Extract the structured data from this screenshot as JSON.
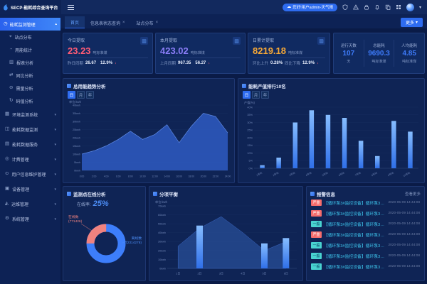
{
  "topbar": {
    "logo": "SECP-能耗综合查询平台",
    "user_pill": "您好!用户admin-天气晴",
    "icons": [
      "shield-icon",
      "warning-icon",
      "lock-icon",
      "bell-icon",
      "copy-icon",
      "grid-icon"
    ]
  },
  "tabs": {
    "items": [
      {
        "label": "首页"
      },
      {
        "label": "信息表状态查询"
      },
      {
        "label": "站点分布"
      }
    ],
    "more_label": "更多"
  },
  "sidebar": {
    "active_group": {
      "label": "能耗监测管理",
      "icon": "clock-icon"
    },
    "sub_items": [
      {
        "label": "站点分布",
        "icon": "pin-icon"
      },
      {
        "label": "用能统计",
        "icon": "pie-icon"
      },
      {
        "label": "报表分析",
        "icon": "report-icon"
      },
      {
        "label": "同比分析",
        "icon": "compare-icon"
      },
      {
        "label": "需量分析",
        "icon": "demand-icon"
      },
      {
        "label": "码值分析",
        "icon": "code-icon"
      }
    ],
    "groups": [
      {
        "label": "环境监测系统",
        "icon": "env-icon"
      },
      {
        "label": "能耗数据监测",
        "icon": "data-monitor-icon"
      },
      {
        "label": "能耗数据服务",
        "icon": "data-service-icon"
      },
      {
        "label": "计费管理",
        "icon": "billing-icon"
      },
      {
        "label": "用户信息维护管理",
        "icon": "user-maint-icon"
      },
      {
        "label": "设备管理",
        "icon": "device-icon"
      },
      {
        "label": "运维管理",
        "icon": "ops-icon"
      },
      {
        "label": "系统管理",
        "icon": "system-icon"
      }
    ]
  },
  "stats": {
    "cards": [
      {
        "title": "今日提取",
        "value": "23.23",
        "unit": "吨标准煤",
        "f1_label": "昨日同期",
        "f1_value": "26.67",
        "f2_label": "",
        "f2_value": "12.9%",
        "arrow": "↓"
      },
      {
        "title": "本月提取",
        "value": "423.02",
        "unit": "吨标准煤",
        "f1_label": "上月同期",
        "f1_value": "967.35",
        "f2_label": "",
        "f2_value": "56.27",
        "arrow": "↓"
      },
      {
        "title": "日累计提取",
        "value": "8219.18",
        "unit": "吨标准煤",
        "f1_label": "环比上升",
        "f1_value": "0.28%",
        "f2_label": "同比下降",
        "f2_value": "12.9%",
        "arrow": "↓"
      }
    ],
    "summary": [
      {
        "label": "运行天数",
        "value": "107",
        "unit": "天"
      },
      {
        "label": "总能耗",
        "value": "9690.3",
        "unit": "吨标准煤"
      },
      {
        "label": "人均能耗",
        "value": "4.85",
        "unit": "吨标准煤"
      }
    ]
  },
  "panels": {
    "trend": {
      "title": "总用能趋势分析",
      "tabs": [
        "日",
        "月",
        "年"
      ],
      "active_tab": 0
    },
    "rank": {
      "title": "能耗产值排行10名",
      "tabs": [
        "日",
        "月",
        "年"
      ],
      "active_tab": 0
    },
    "online": {
      "title": "监测点在线分析",
      "rate_label": "在线率:",
      "rate": "25%",
      "online_label": "在线数",
      "online_value": "(771426)",
      "offline_label": "离线数",
      "offline_value": "(2314278)"
    },
    "balance": {
      "title": "分项平衡"
    },
    "alarm": {
      "title": "报警信息",
      "more": "查看更多"
    }
  },
  "chart_data": [
    {
      "id": "trend",
      "type": "area",
      "title": "总用能趋势分析",
      "x": [
        "0:00",
        "2:00",
        "4:00",
        "6:00",
        "8:00",
        "10:00",
        "12:00",
        "14:00",
        "16:00",
        "18:00",
        "20:00",
        "22:00",
        "24:00"
      ],
      "values": [
        10,
        12,
        15,
        19,
        24,
        19,
        22,
        28,
        17,
        27,
        35,
        33,
        23
      ],
      "ylabel": "单位:kwh",
      "tick_unit": "kwh",
      "ylim": [
        0,
        40
      ],
      "grid": true,
      "color": "#2b57ba"
    },
    {
      "id": "rank",
      "type": "bar",
      "title": "能耗产值排行10名",
      "categories": [
        "1号站",
        "2号站",
        "3号站",
        "4号站",
        "5号站",
        "6号站",
        "7号站",
        "8号站",
        "9号站",
        "10号站"
      ],
      "values": [
        2,
        7,
        30,
        38,
        35,
        33,
        18,
        8,
        31,
        24
      ],
      "ylabel": "产值(%)",
      "tick_unit": "%",
      "ylim": [
        0,
        40
      ],
      "grid": true,
      "color": "#3b7ef5"
    },
    {
      "id": "online",
      "type": "pie",
      "title": "监测点在线分析",
      "slices": [
        {
          "label": "在线数",
          "value": 25,
          "color": "#f0827f"
        },
        {
          "label": "离线数",
          "value": 75,
          "color": "#3d7efb"
        }
      ],
      "center_text": "在线率 25%"
    },
    {
      "id": "balance",
      "type": "area+bar",
      "title": "分项平衡",
      "categories": [
        "1日",
        "2日",
        "3日",
        "4日",
        "5日",
        "6日"
      ],
      "series": [
        {
          "name": "趋势",
          "type": "area",
          "values": [
            25,
            45,
            58,
            40,
            20,
            30
          ]
        },
        {
          "name": "用量",
          "type": "bar",
          "values": [
            0,
            48,
            0,
            0,
            28,
            34
          ]
        }
      ],
      "ylabel": "单位:kwh",
      "tick_unit": "kwh",
      "ylim": [
        0,
        70
      ],
      "grid": true,
      "color": "#3f8dff"
    }
  ],
  "alarms": {
    "rows": [
      {
        "level": "严重",
        "type": "danger",
        "text": "【循环泵3#监控设备】循环泵3#流量超限",
        "time": "2020-05-09 14:44:08"
      },
      {
        "level": "严重",
        "type": "danger",
        "text": "【循环泵3#监控设备】循环泵3#流量超限",
        "time": "2020-05-09 14:44:08"
      },
      {
        "level": "一般",
        "type": "normal",
        "text": "【循环泵3#监控设备】循环泵3#流量超限",
        "time": "2020-05-09 14:44:08"
      },
      {
        "level": "严重",
        "type": "danger",
        "text": "【循环泵3#监控设备】循环泵3#流量超限",
        "time": "2020-05-09 14:44:08"
      },
      {
        "level": "一般",
        "type": "normal",
        "text": "【循环泵3#监控设备】循环泵3#流量超限",
        "time": "2020-05-09 14:44:08"
      },
      {
        "level": "一般",
        "type": "normal",
        "text": "【循环泵3#监控设备】循环泵3#流量超限",
        "time": "2020-05-09 14:44:08"
      },
      {
        "level": "一般",
        "type": "normal",
        "text": "【循环泵3#监控设备】循环泵3#流量超限",
        "time": "2020-05-09 14:44:08"
      }
    ]
  },
  "colors": {
    "accent": "#2e6cf0",
    "danger": "#f56c6c",
    "warning": "#f6a837",
    "purple": "#8a7df7",
    "pink": "#ff5c75",
    "cyan": "#3ec7ee",
    "bar_blue": "#3f8dff",
    "area_blue": "#2b57ba",
    "bg": "#0a1b47",
    "panel": "#0f2455"
  }
}
